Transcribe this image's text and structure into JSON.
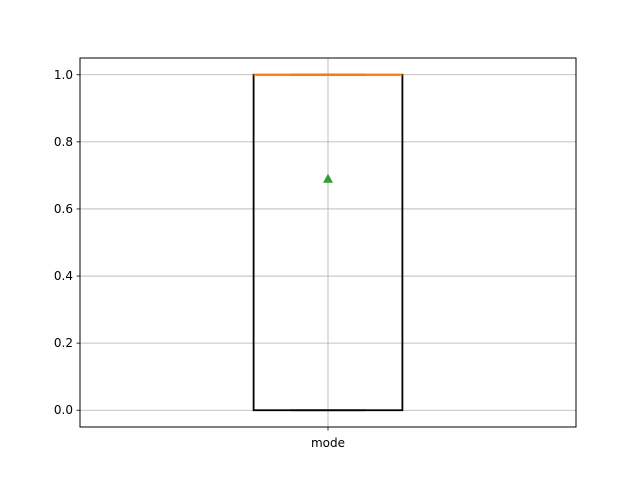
{
  "chart_data": {
    "type": "box",
    "categories": [
      "mode"
    ],
    "boxes": [
      {
        "name": "mode",
        "q1": 0.0,
        "median": 1.0,
        "q3": 1.0,
        "whisker_low": 0.0,
        "whisker_high": 1.0,
        "mean": 0.69
      }
    ],
    "ylim": [
      -0.05,
      1.05
    ],
    "yticks": [
      0.0,
      0.2,
      0.4,
      0.6,
      0.8,
      1.0
    ],
    "ytick_labels": [
      "0.0",
      "0.2",
      "0.4",
      "0.6",
      "0.8",
      "1.0"
    ],
    "grid": true,
    "title": "",
    "xlabel": "",
    "ylabel": "",
    "colors": {
      "box": "#000000",
      "median": "#ff7f0e",
      "mean": "#2ca02c",
      "grid": "#b0b0b0"
    }
  }
}
